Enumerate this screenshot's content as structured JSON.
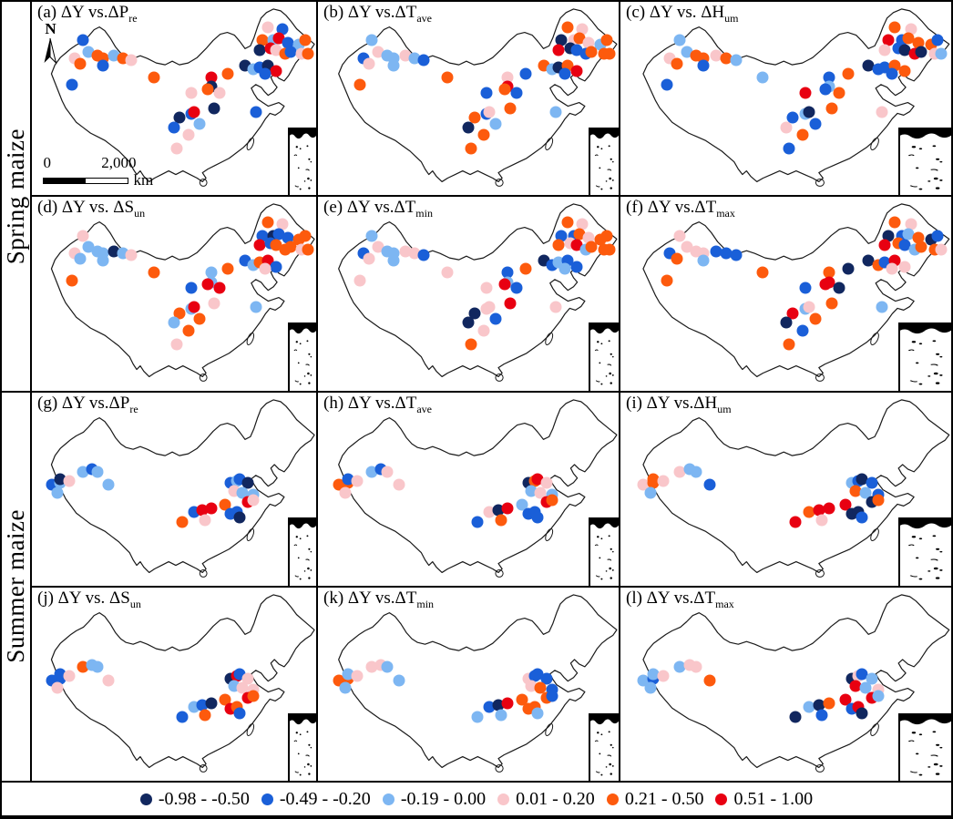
{
  "figure": {
    "row_labels": [
      {
        "text": "Spring maize"
      },
      {
        "text": "Summer maize"
      }
    ],
    "north_arrow_label": "N",
    "scale_bar": {
      "start": "0",
      "end": "2,000",
      "unit": "km"
    }
  },
  "legend": {
    "items": [
      {
        "label": "-0.98 - -0.50",
        "color": "#11275f"
      },
      {
        "label": "-0.49 - -0.20",
        "color": "#1a5fd8"
      },
      {
        "label": "-0.19 - 0.00",
        "color": "#7db6f2"
      },
      {
        "label": "0.01 - 0.20",
        "color": "#f9c6ca"
      },
      {
        "label": "0.21 - 0.50",
        "color": "#fd5a0d"
      },
      {
        "label": "0.51 - 1.00",
        "color": "#e80011"
      }
    ]
  },
  "chart_data": {
    "type": "scatter",
    "layout": "4 rows x 3 columns of China maps; station dots colored by correlation class",
    "categories": [
      "-0.98 - -0.50",
      "-0.49 - -0.20",
      "-0.19 - 0.00",
      "0.01 - 0.20",
      "0.21 - 0.50",
      "0.51 - 1.00"
    ],
    "colors": [
      "#11275f",
      "#1a5fd8",
      "#7db6f2",
      "#f9c6ca",
      "#fd5a0d",
      "#e80011"
    ],
    "spring_stations": [
      [
        18,
        20
      ],
      [
        15,
        29
      ],
      [
        20,
        26
      ],
      [
        23,
        28
      ],
      [
        25,
        29
      ],
      [
        29,
        28
      ],
      [
        32,
        29
      ],
      [
        25,
        33
      ],
      [
        17,
        32
      ],
      [
        35,
        30
      ],
      [
        14,
        43
      ],
      [
        43,
        39
      ],
      [
        56,
        47
      ],
      [
        63,
        39
      ],
      [
        69,
        37
      ],
      [
        63,
        44
      ],
      [
        62,
        45
      ],
      [
        66,
        47
      ],
      [
        52,
        60
      ],
      [
        56,
        58
      ],
      [
        57,
        57
      ],
      [
        64,
        55
      ],
      [
        79,
        57
      ],
      [
        50,
        65
      ],
      [
        59,
        63
      ],
      [
        55,
        69
      ],
      [
        51,
        76
      ],
      [
        83,
        13
      ],
      [
        88,
        14
      ],
      [
        81,
        20
      ],
      [
        85,
        20
      ],
      [
        87,
        19
      ],
      [
        90,
        21
      ],
      [
        94,
        22
      ],
      [
        96,
        20
      ],
      [
        80,
        25
      ],
      [
        84,
        24
      ],
      [
        86,
        25
      ],
      [
        89,
        27
      ],
      [
        91,
        26
      ],
      [
        95,
        27
      ],
      [
        97,
        27
      ],
      [
        75,
        33
      ],
      [
        78,
        35
      ],
      [
        80,
        34
      ],
      [
        83,
        33
      ],
      [
        86,
        36
      ],
      [
        82,
        37
      ]
    ],
    "summer_stations": [
      [
        7,
        48
      ],
      [
        10,
        47
      ],
      [
        10,
        45
      ],
      [
        13,
        46
      ],
      [
        9,
        52
      ],
      [
        18,
        41
      ],
      [
        21,
        40
      ],
      [
        23,
        41
      ],
      [
        27,
        48
      ],
      [
        53,
        67
      ],
      [
        57,
        62
      ],
      [
        60,
        61
      ],
      [
        63,
        60
      ],
      [
        61,
        66
      ],
      [
        68,
        58
      ],
      [
        70,
        63
      ],
      [
        72,
        62
      ],
      [
        70,
        47
      ],
      [
        72,
        46
      ],
      [
        73,
        45
      ],
      [
        76,
        47
      ],
      [
        71,
        51
      ],
      [
        74,
        52
      ],
      [
        78,
        53
      ],
      [
        76,
        57
      ],
      [
        78,
        56
      ],
      [
        73,
        65
      ]
    ],
    "panels": [
      {
        "id": "a",
        "group": "spring",
        "title": "(a) ΔY vs.ΔP",
        "sub": "re",
        "values": [
          1,
          3,
          2,
          4,
          4,
          2,
          4,
          1,
          4,
          3,
          1,
          4,
          3,
          5,
          4,
          0,
          4,
          3,
          0,
          1,
          5,
          0,
          1,
          1,
          2,
          3,
          3,
          3,
          1,
          4,
          2,
          5,
          1,
          2,
          4,
          0,
          5,
          3,
          4,
          1,
          3,
          4,
          0,
          2,
          1,
          0,
          5,
          1
        ]
      },
      {
        "id": "b",
        "group": "spring",
        "title": "(b) ΔY vs.ΔT",
        "sub": "ave",
        "values": [
          2,
          1,
          3,
          2,
          2,
          3,
          2,
          2,
          3,
          1,
          4,
          4,
          1,
          3,
          1,
          5,
          4,
          1,
          4,
          1,
          3,
          4,
          2,
          0,
          2,
          4,
          4,
          4,
          3,
          0,
          3,
          4,
          3,
          2,
          4,
          5,
          0,
          1,
          1,
          4,
          4,
          4,
          4,
          2,
          0,
          4,
          5,
          1
        ]
      },
      {
        "id": "c",
        "group": "spring",
        "title": "(c) ΔY vs. ΔH",
        "sub": "um",
        "values": [
          2,
          3,
          2,
          4,
          4,
          3,
          4,
          1,
          4,
          2,
          1,
          2,
          5,
          1,
          4,
          2,
          1,
          4,
          1,
          2,
          0,
          4,
          3,
          3,
          1,
          4,
          1,
          4,
          3,
          5,
          1,
          4,
          4,
          4,
          1,
          3,
          1,
          0,
          5,
          0,
          3,
          2,
          0,
          1,
          1,
          4,
          4,
          1
        ]
      },
      {
        "id": "d",
        "group": "spring",
        "title": "(d) ΔY vs. ΔS",
        "sub": "un",
        "values": [
          3,
          3,
          2,
          2,
          2,
          0,
          2,
          2,
          2,
          3,
          4,
          4,
          1,
          2,
          4,
          2,
          5,
          5,
          4,
          2,
          5,
          3,
          2,
          2,
          4,
          4,
          3,
          4,
          3,
          1,
          0,
          1,
          1,
          4,
          4,
          5,
          1,
          4,
          4,
          4,
          3,
          4,
          1,
          2,
          4,
          5,
          1,
          3
        ]
      },
      {
        "id": "e",
        "group": "spring",
        "title": "(e) ΔY vs.ΔT",
        "sub": "min",
        "values": [
          2,
          1,
          3,
          2,
          2,
          3,
          3,
          2,
          3,
          1,
          3,
          3,
          3,
          1,
          4,
          2,
          5,
          1,
          0,
          3,
          3,
          5,
          3,
          0,
          1,
          3,
          4,
          4,
          3,
          1,
          1,
          4,
          3,
          4,
          4,
          4,
          3,
          5,
          2,
          4,
          4,
          4,
          0,
          1,
          2,
          1,
          1,
          2
        ]
      },
      {
        "id": "f",
        "group": "spring",
        "title": "(f) ΔY vs.ΔT",
        "sub": "max",
        "values": [
          3,
          1,
          3,
          3,
          3,
          1,
          1,
          2,
          4,
          1,
          4,
          4,
          1,
          4,
          0,
          5,
          5,
          0,
          5,
          2,
          3,
          4,
          2,
          0,
          4,
          1,
          4,
          4,
          3,
          0,
          1,
          2,
          4,
          0,
          1,
          5,
          4,
          1,
          2,
          4,
          4,
          3,
          0,
          4,
          1,
          5,
          3,
          3
        ]
      },
      {
        "id": "g",
        "group": "summer",
        "title": "(g) ΔY vs.ΔP",
        "sub": "re",
        "values": [
          1,
          2,
          0,
          3,
          2,
          2,
          1,
          2,
          2,
          4,
          1,
          5,
          5,
          3,
          4,
          1,
          1,
          1,
          2,
          1,
          0,
          3,
          2,
          2,
          5,
          3,
          0
        ]
      },
      {
        "id": "h",
        "group": "summer",
        "title": "(h) ΔY vs.ΔT",
        "sub": "ave",
        "values": [
          4,
          4,
          1,
          3,
          3,
          2,
          1,
          3,
          3,
          1,
          3,
          0,
          5,
          4,
          2,
          1,
          1,
          0,
          4,
          5,
          3,
          2,
          3,
          2,
          5,
          4,
          1
        ]
      },
      {
        "id": "i",
        "group": "summer",
        "title": "(i) ΔY vs.ΔH",
        "sub": "um",
        "values": [
          3,
          4,
          4,
          3,
          2,
          3,
          2,
          2,
          1,
          5,
          4,
          5,
          5,
          3,
          5,
          0,
          0,
          2,
          1,
          0,
          1,
          4,
          2,
          1,
          0,
          4,
          1
        ]
      },
      {
        "id": "j",
        "group": "summer",
        "title": "(j) ΔY vs. ΔS",
        "sub": "un",
        "values": [
          1,
          1,
          1,
          3,
          3,
          4,
          2,
          2,
          3,
          1,
          2,
          1,
          0,
          4,
          4,
          5,
          4,
          0,
          5,
          1,
          3,
          2,
          3,
          3,
          5,
          4,
          1
        ]
      },
      {
        "id": "k",
        "group": "summer",
        "title": "(k) ΔY vs.ΔT",
        "sub": "min",
        "values": [
          4,
          4,
          2,
          3,
          2,
          3,
          3,
          2,
          2,
          2,
          1,
          0,
          5,
          2,
          4,
          4,
          4,
          3,
          1,
          1,
          1,
          3,
          4,
          1,
          4,
          1,
          2
        ]
      },
      {
        "id": "l",
        "group": "summer",
        "title": "(l) ΔY vs.ΔT",
        "sub": "max",
        "values": [
          2,
          1,
          2,
          3,
          2,
          2,
          3,
          3,
          4,
          0,
          2,
          0,
          4,
          1,
          5,
          1,
          5,
          0,
          3,
          1,
          2,
          5,
          2,
          3,
          5,
          2,
          0
        ]
      }
    ]
  }
}
